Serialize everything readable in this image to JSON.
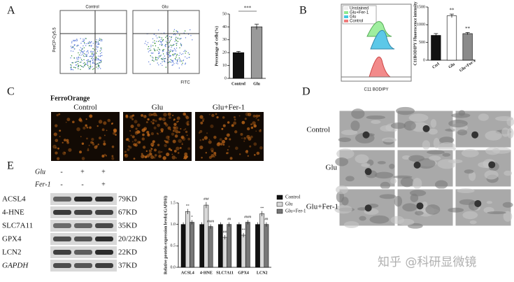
{
  "panel_labels": [
    "A",
    "B",
    "C",
    "D",
    "E"
  ],
  "panel_a": {
    "flow_titles": [
      "Control",
      "Glu"
    ],
    "y_label": "PerCP-Cy5.5",
    "x_label": "FITC"
  },
  "panel_b": {
    "histogram_legend": [
      "Unstained",
      "Glu+Fer-1",
      "Glu",
      "Control"
    ],
    "x_label": "C11 BODIPY"
  },
  "panel_c": {
    "stain": "FerroOrange",
    "conditions": [
      "Control",
      "Glu",
      "Glu+Fer-1"
    ]
  },
  "panel_d": {
    "conditions": [
      "Control",
      "Glu",
      "Glu+Fer-1"
    ]
  },
  "panel_e": {
    "treatments": [
      {
        "name": "Glu",
        "signs": [
          "-",
          "+",
          "+"
        ]
      },
      {
        "name": "Fer-1",
        "signs": [
          "-",
          "-",
          "+"
        ]
      }
    ],
    "proteins": [
      {
        "name": "ACSL4",
        "size": "79KD"
      },
      {
        "name": "4-HNE",
        "size": "67KD"
      },
      {
        "name": "SLC7A11",
        "size": "35KD"
      },
      {
        "name": "GPX4",
        "size": "20/22KD"
      },
      {
        "name": "LCN2",
        "size": "22KD"
      },
      {
        "name": "GAPDH",
        "size": "37KD"
      }
    ]
  },
  "watermark": "知乎 @科研显微镜",
  "chart_data": [
    {
      "type": "bar",
      "y_label": "Percentage of cells(%)",
      "categories": [
        "Control",
        "Glu"
      ],
      "values": [
        20,
        40
      ],
      "errors": [
        1,
        2
      ],
      "colors": [
        "#111111",
        "#9a9a9a"
      ],
      "ylim": [
        0,
        50
      ],
      "yticks": [
        0,
        10,
        20,
        30,
        40,
        50
      ],
      "annotations": [
        "***"
      ]
    },
    {
      "type": "bar",
      "y_label": "C11BODIPY Fluorescence intensity",
      "categories": [
        "Ctrl",
        "Glu",
        "Glu+Fer-1"
      ],
      "values": [
        700,
        1250,
        750
      ],
      "errors": [
        50,
        50,
        30
      ],
      "colors": [
        "#111111",
        "#ffffff",
        "#8a8a8a"
      ],
      "ylim": [
        0,
        1500
      ],
      "yticks": [
        0,
        500,
        1000,
        1500
      ],
      "annotations": [
        "**",
        "**"
      ]
    },
    {
      "type": "grouped-bar",
      "y_label": "Relative protein expression levels(/GAPDH)",
      "categories": [
        "ACSL4",
        "4-HNE",
        "SLC7A11",
        "GPX4",
        "LCN2"
      ],
      "series": [
        {
          "name": "Control",
          "color": "#111111",
          "values": [
            1.0,
            1.0,
            1.0,
            1.0,
            1.0
          ],
          "errors": [
            0.05,
            0.05,
            0.05,
            0.05,
            0.05
          ]
        },
        {
          "name": "Glu",
          "color": "#d8d8d8",
          "values": [
            1.3,
            1.45,
            0.7,
            0.75,
            1.25
          ],
          "errors": [
            0.06,
            0.07,
            0.05,
            0.05,
            0.06
          ],
          "significance": [
            "**",
            "###",
            "##",
            "**",
            "**"
          ]
        },
        {
          "name": "Glu+Fer-1",
          "color": "#777777",
          "values": [
            1.05,
            0.95,
            1.0,
            1.05,
            1.0
          ],
          "errors": [
            0.05,
            0.05,
            0.05,
            0.05,
            0.05
          ],
          "significance": [
            "*",
            "####",
            "##",
            "####",
            "##"
          ]
        }
      ],
      "ylim": [
        0,
        1.5
      ],
      "yticks": [
        {
          "value": 0,
          "label": "0.0"
        },
        {
          "value": 0.5,
          "label": "0.5"
        },
        {
          "value": 1,
          "label": "1.0"
        },
        {
          "value": 1.5,
          "label": "1.5"
        }
      ]
    }
  ]
}
